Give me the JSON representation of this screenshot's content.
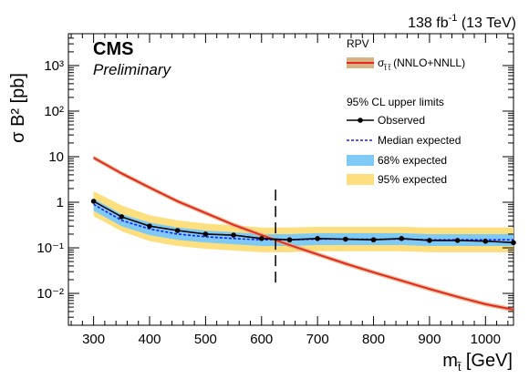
{
  "header": {
    "lumi_value": "138 fb",
    "lumi_exp": "-1",
    "lumi_rest": " (13 TeV)"
  },
  "labels": {
    "cms": "CMS",
    "preliminary": "Preliminary"
  },
  "chart_data": {
    "type": "line",
    "xlabel": "m [GeV]",
    "ylabel": "σ B² [pb]",
    "xlim": [
      255,
      1050
    ],
    "ylim": [
      0.002,
      5000
    ],
    "yscale": "log",
    "x_ticks": [
      "300",
      "400",
      "500",
      "600",
      "700",
      "800",
      "900",
      "1000"
    ],
    "y_ticks": [
      "10⁻²",
      "10⁻¹",
      "1",
      "10",
      "10²",
      "10³"
    ],
    "legend": {
      "placement": "top-right",
      "group1_title": "RPV",
      "theory_label": "(NNLO+NNLL)",
      "group2_title": "95% CL upper limits",
      "observed": "Observed",
      "median": "Median expected",
      "band68": "68% expected",
      "band95": "95% expected"
    },
    "colors": {
      "theory": "#e8261e",
      "theory_band": "#d8b283",
      "observed": "#000000",
      "median": "#1a1aff",
      "band68": "#7fcaf5",
      "band95": "#fddf7f"
    },
    "masses": [
      300,
      350,
      400,
      450,
      500,
      550,
      600,
      650,
      700,
      750,
      800,
      850,
      900,
      950,
      1000,
      1050
    ],
    "observed": [
      1.05,
      0.48,
      0.3,
      0.24,
      0.2,
      0.19,
      0.16,
      0.15,
      0.16,
      0.155,
      0.15,
      0.16,
      0.145,
      0.145,
      0.14,
      0.13
    ],
    "median_expected": [
      0.9,
      0.4,
      0.26,
      0.2,
      0.175,
      0.16,
      0.15,
      0.15,
      0.155,
      0.155,
      0.155,
      0.155,
      0.15,
      0.15,
      0.15,
      0.15
    ],
    "band68_low": [
      0.65,
      0.3,
      0.19,
      0.15,
      0.13,
      0.12,
      0.11,
      0.11,
      0.115,
      0.115,
      0.115,
      0.115,
      0.11,
      0.11,
      0.11,
      0.11
    ],
    "band68_high": [
      1.2,
      0.55,
      0.36,
      0.28,
      0.24,
      0.22,
      0.2,
      0.2,
      0.21,
      0.21,
      0.21,
      0.21,
      0.2,
      0.2,
      0.2,
      0.2
    ],
    "band95_low": [
      0.5,
      0.23,
      0.14,
      0.11,
      0.095,
      0.087,
      0.08,
      0.08,
      0.084,
      0.084,
      0.084,
      0.084,
      0.08,
      0.08,
      0.08,
      0.08
    ],
    "band95_high": [
      1.75,
      0.85,
      0.52,
      0.4,
      0.34,
      0.31,
      0.28,
      0.28,
      0.29,
      0.29,
      0.29,
      0.29,
      0.28,
      0.28,
      0.28,
      0.28
    ],
    "theory_xsec": [
      9.5,
      4.3,
      2.1,
      1.05,
      0.58,
      0.32,
      0.19,
      0.115,
      0.072,
      0.045,
      0.029,
      0.019,
      0.0125,
      0.0084,
      0.0058,
      0.0044
    ],
    "kinematic_line_x": 625,
    "kinematic_line_y": [
      0.014,
      1.9
    ]
  }
}
